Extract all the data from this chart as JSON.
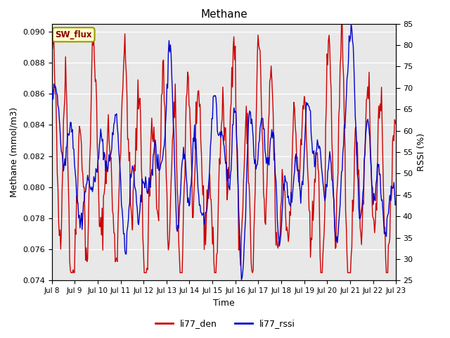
{
  "title": "Methane",
  "xlabel": "Time",
  "ylabel_left": "Methane (mmol/m3)",
  "ylabel_right": "RSSI (%)",
  "ylim_left": [
    0.074,
    0.0905
  ],
  "ylim_right": [
    25,
    85
  ],
  "yticks_left": [
    0.074,
    0.076,
    0.078,
    0.08,
    0.082,
    0.084,
    0.086,
    0.088,
    0.09
  ],
  "yticks_right": [
    25,
    30,
    35,
    40,
    45,
    50,
    55,
    60,
    65,
    70,
    75,
    80,
    85
  ],
  "legend_labels": [
    "li77_den",
    "li77_rssi"
  ],
  "legend_colors": [
    "#cc0000",
    "#0000cc"
  ],
  "annotation_text": "SW_flux",
  "annotation_bg": "#ffffcc",
  "annotation_border": "#999900",
  "bg_color": "#e8e8e8",
  "line_color_red": "#cc0000",
  "line_color_blue": "#0000cc",
  "n_points": 500,
  "x_start": 8.0,
  "x_end": 23.0,
  "xtick_positions": [
    8,
    9,
    10,
    11,
    12,
    13,
    14,
    15,
    16,
    17,
    18,
    19,
    20,
    21,
    22,
    23
  ],
  "xtick_labels": [
    "Jul 8",
    "Jul 9",
    "Jul 10",
    "Jul 11",
    "Jul 12",
    "Jul 13",
    "Jul 14",
    "Jul 15",
    "Jul 16",
    "Jul 17",
    "Jul 18",
    "Jul 19",
    "Jul 20",
    "Jul 21",
    "Jul 22",
    "Jul 23"
  ]
}
